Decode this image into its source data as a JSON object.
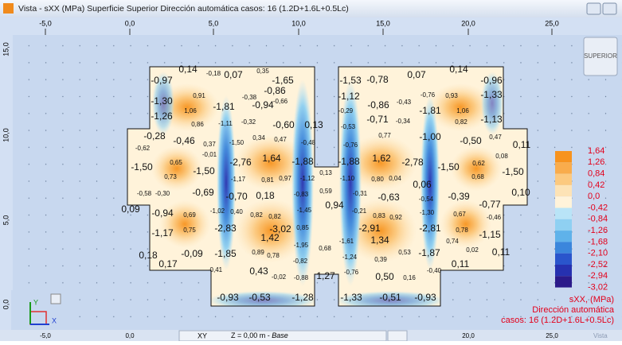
{
  "window": {
    "title": "Vista - sXX (MPa)  Superficie Superior Dirección automática casos: 16 (1.2D+1.6L+0.5Lc)"
  },
  "ruler": {
    "top": [
      "-5,0",
      "0,0",
      "5,0",
      "10,0",
      "15,0",
      "20,0",
      "25,0"
    ],
    "left": [
      "15,0",
      "10,0",
      "5,0",
      "0,0"
    ],
    "bottom": [
      "-5,0",
      "0,0",
      "20,0",
      "25,0"
    ]
  },
  "view_button": "SUPERIOR",
  "axes_icon": {
    "y": "Y",
    "x": "X"
  },
  "legend": {
    "labels": [
      "1,64",
      "1,26",
      "0,84",
      "0,42",
      "0,0",
      "-0,42",
      "-0,84",
      "-1,26",
      "-1,68",
      "-2,10",
      "-2,52",
      "-2,94",
      "-3,02"
    ],
    "colors": [
      "#f7931e",
      "#f9ac4c",
      "#fcc97f",
      "#fde3b6",
      "#fff3da",
      "#b9e4f7",
      "#8fd0f2",
      "#5fb2ea",
      "#3b86dc",
      "#2a55cc",
      "#2631b0",
      "#2b1a8a",
      "#4b0f78"
    ],
    "caption": [
      "sXX, (MPa)",
      "Dirección automática",
      "casos: 16 (1.2D+1.6L+0.5Lc)"
    ]
  },
  "status": {
    "plane": "XY",
    "z": "Z = 0,00 m - ",
    "level": "Base",
    "tab": "Vista"
  },
  "contour_labels": [
    "0,14",
    "-0,18",
    "0,07",
    "0,35",
    "0,07",
    "0,14",
    "-0,97",
    "-0,86",
    "-1,65",
    "-1,53",
    "-0,78",
    "-0,96",
    "-1,30",
    "0,91",
    "-0,38",
    "-0,94",
    "-0,66",
    "-1,12",
    "-0,86",
    "-0,43",
    "-0,76",
    "0,93",
    "-1,33",
    "1,06",
    "-1,81",
    "-1,81",
    "1,06",
    "-0,29",
    "-1,26",
    "-0,71",
    "-0,34",
    "-1,13",
    "0,86",
    "-1,11",
    "-0,32",
    "-0,60",
    "0,13",
    "0,82",
    "-0,53",
    "-0,28",
    "-0,46",
    "0,37",
    "-1,50",
    "0,34",
    "0,47",
    "-0,48",
    "-0,76",
    "0,77",
    "-1,00",
    "-0,50",
    "0,47",
    "0,11",
    "-0,62",
    "-0,01",
    "0,65",
    "-2,76",
    "1,64",
    "-1,88",
    "-1,88",
    "1,62",
    "-2,78",
    "0,08",
    "0,62",
    "-1,50",
    "-1,50",
    "-1,50",
    "0,73",
    "0,13",
    "-1,17",
    "0,81",
    "0,97",
    "-1,12",
    "-1,10",
    "0,80",
    "0,04",
    "0,06",
    "0,68",
    "-1,50",
    "-0,58",
    "-0,30",
    "-0,69",
    "-0,70",
    "0,18",
    "-0,83",
    "0,59",
    "-0,31",
    "-0,63",
    "-0,54",
    "-0,39",
    "0,10",
    "-0,77",
    "0,09",
    "-0,94",
    "0,69",
    "-1,02",
    "0,40",
    "0,82",
    "0,82",
    "-1,45",
    "0,94",
    "-0,21",
    "0,83",
    "0,92",
    "-1,30",
    "0,67",
    "-0,46",
    "-1,17",
    "0,75",
    "-2,83",
    "-3,02",
    "0,85",
    "-2,91",
    "-2,81",
    "0,78",
    "-1,15",
    "1,42",
    "-1,61",
    "1,34",
    "0,74",
    "-1,95",
    "0,68",
    "0,89",
    "0,78",
    "-1,85",
    "-1,87",
    "0,53",
    "0,02",
    "0,11",
    "-0,09",
    "0,18",
    "-1,24",
    "0,39",
    "0,17",
    "-0,82",
    "0,11",
    "-0,41",
    "0,43",
    "-0,40",
    "-0,76",
    "-0,02",
    "-0,88",
    "1,27",
    "0,50",
    "0,16",
    "-0,93",
    "-0,53",
    "-1,28",
    "-1,33",
    "-0,51",
    "-0,93"
  ]
}
